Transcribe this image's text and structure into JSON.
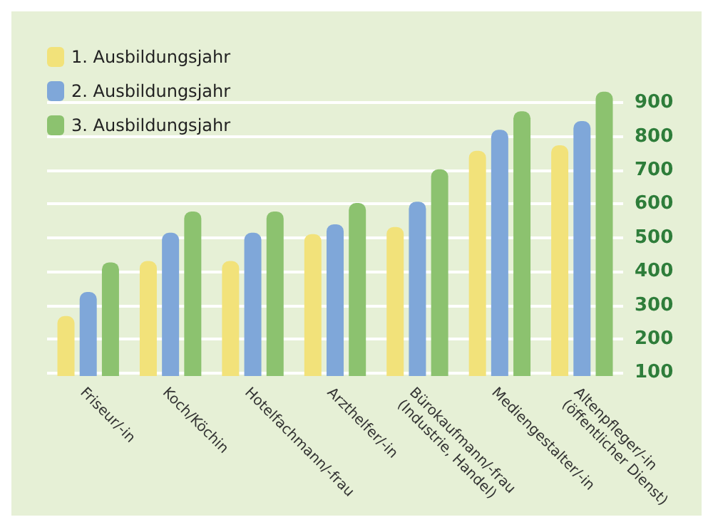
{
  "chart_data": {
    "type": "bar",
    "categories": [
      "Friseur/-in",
      "Koch/Köchin",
      "Hotelfachmann/-frau",
      "Arzthelfer/-in",
      "Bürokaufmann/-frau\n(Industrie, Handel)",
      "Mediengestalter/-in",
      "Altenpfleger/-in\n(öffentlicher Dienst)"
    ],
    "series": [
      {
        "name": "1. Ausbildungsjahr",
        "color": "#f2e27a",
        "values": [
          268,
          431,
          431,
          511,
          532,
          758,
          774
        ]
      },
      {
        "name": "2. Ausbildungsjahr",
        "color": "#7fa7d9",
        "values": [
          339,
          515,
          515,
          540,
          607,
          820,
          846
        ]
      },
      {
        "name": "3. Ausbildungsjahr",
        "color": "#8cc26f",
        "values": [
          427,
          578,
          578,
          603,
          703,
          875,
          933
        ]
      }
    ],
    "ylim": [
      90,
      960
    ],
    "yticks": [
      100,
      200,
      300,
      400,
      500,
      600,
      700,
      800,
      900
    ],
    "grid": "y",
    "legend": "top left"
  }
}
